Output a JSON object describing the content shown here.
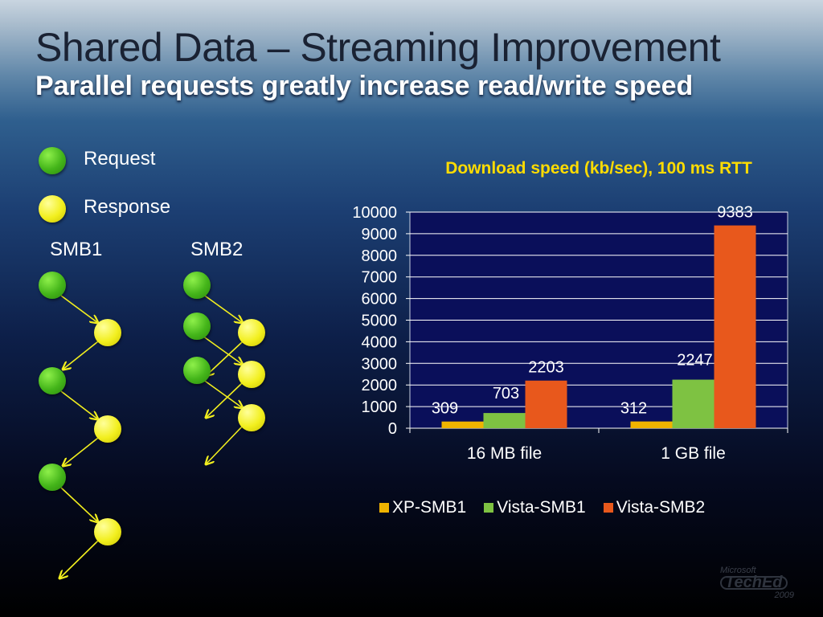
{
  "slide": {
    "title": "Shared Data – Streaming Improvement",
    "subtitle": "Parallel requests greatly increase read/write speed"
  },
  "legend": {
    "request_label": "Request",
    "response_label": "Response",
    "request_color": "#44b51a",
    "response_color": "#f2ef1e"
  },
  "diagram": {
    "smb1_label": "SMB1",
    "smb2_label": "SMB2"
  },
  "chart_data": {
    "type": "bar",
    "title": "Download speed (kb/sec), 100 ms RTT",
    "categories": [
      "16 MB file",
      "1 GB file"
    ],
    "series": [
      {
        "name": "XP-SMB1",
        "values": [
          309,
          312
        ],
        "color": "#f0b400"
      },
      {
        "name": "Vista-SMB1",
        "values": [
          703,
          2247
        ],
        "color": "#7ec242"
      },
      {
        "name": "Vista-SMB2",
        "values": [
          2203,
          9383
        ],
        "color": "#e8581c"
      }
    ],
    "ylim": [
      0,
      10000
    ],
    "yticks": [
      0,
      1000,
      2000,
      3000,
      4000,
      5000,
      6000,
      7000,
      8000,
      9000,
      10000
    ],
    "grid": true,
    "legend_position": "bottom",
    "plot_background": "#0a0f5a"
  },
  "logo": {
    "line1": "Microsoft",
    "brand": "TechEd",
    "year": "2009"
  }
}
